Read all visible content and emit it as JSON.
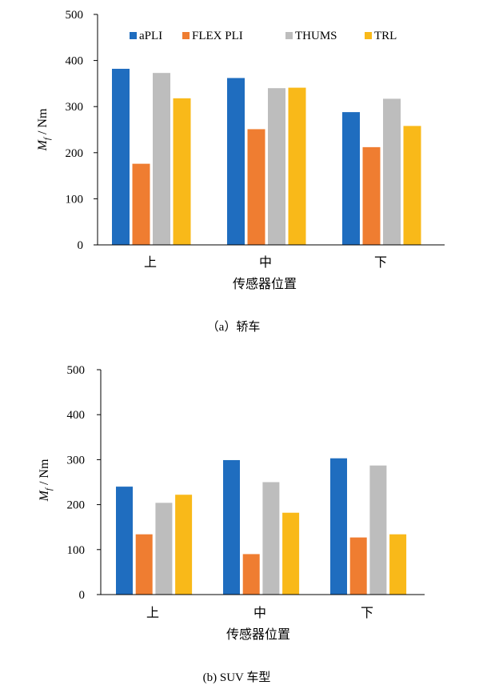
{
  "chart_data": [
    {
      "type": "bar",
      "caption": "（a）轿车",
      "categories": [
        "上",
        "中",
        "下"
      ],
      "xlabel": "传感器位置",
      "ylabel_main": "M",
      "ylabel_sub": "f",
      "ylabel_unit": " / Nm",
      "ylim": [
        0,
        500
      ],
      "yticks": [
        "0",
        "100",
        "200",
        "300",
        "400",
        "500"
      ],
      "legend": "top",
      "series": [
        {
          "name": "aPLI",
          "color": "#1f6dbf",
          "values": [
            382,
            362,
            288
          ]
        },
        {
          "name": "FLEX PLI",
          "color": "#ef7d31",
          "values": [
            176,
            251,
            212
          ]
        },
        {
          "name": "THUMS",
          "color": "#bdbdbd",
          "values": [
            373,
            340,
            317
          ]
        },
        {
          "name": "TRL",
          "color": "#f9b919",
          "values": [
            318,
            341,
            258
          ]
        }
      ]
    },
    {
      "type": "bar",
      "caption": "(b) SUV 车型",
      "categories": [
        "上",
        "中",
        "下"
      ],
      "xlabel": "传感器位置",
      "ylabel_main": "M",
      "ylabel_sub": "f",
      "ylabel_unit": " / Nm",
      "ylim": [
        0,
        500
      ],
      "yticks": [
        "0",
        "100",
        "200",
        "300",
        "400",
        "500"
      ],
      "legend": "none",
      "series": [
        {
          "name": "aPLI",
          "color": "#1f6dbf",
          "values": [
            240,
            299,
            303
          ]
        },
        {
          "name": "FLEX PLI",
          "color": "#ef7d31",
          "values": [
            134,
            90,
            127
          ]
        },
        {
          "name": "THUMS",
          "color": "#bdbdbd",
          "values": [
            204,
            250,
            287
          ]
        },
        {
          "name": "TRL",
          "color": "#f9b919",
          "values": [
            222,
            182,
            134
          ]
        }
      ]
    }
  ]
}
